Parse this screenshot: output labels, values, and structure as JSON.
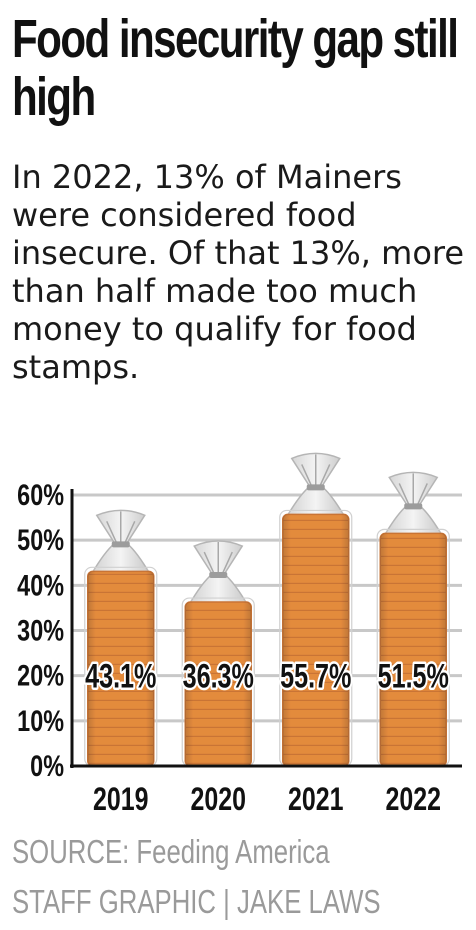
{
  "title": "Food insecurity gap still high",
  "subtitle": "In 2022, 13% of Mainers were considered food insecure. Of that 13%, more than half made too much money to qualify for food stamps.",
  "footer": {
    "source": "SOURCE: Feeding America",
    "credit": "STAFF GRAPHIC | JAKE LAWS"
  },
  "colors": {
    "bread": "#e07b22",
    "bread_dark": "#c2611a",
    "grid": "#c8c8c8",
    "text": "#111111"
  },
  "chart_data": {
    "type": "bar",
    "categories": [
      "2019",
      "2020",
      "2021",
      "2022"
    ],
    "values": [
      43.1,
      36.3,
      55.7,
      51.5
    ],
    "value_labels": [
      "43.1%",
      "36.3%",
      "55.7%",
      "51.5%"
    ],
    "yticks": [
      "0%",
      "10%",
      "20%",
      "30%",
      "40%",
      "50%",
      "60%"
    ],
    "ylim": [
      0,
      60
    ],
    "grid": true,
    "bar_style": "loaf-of-bread-icon"
  }
}
